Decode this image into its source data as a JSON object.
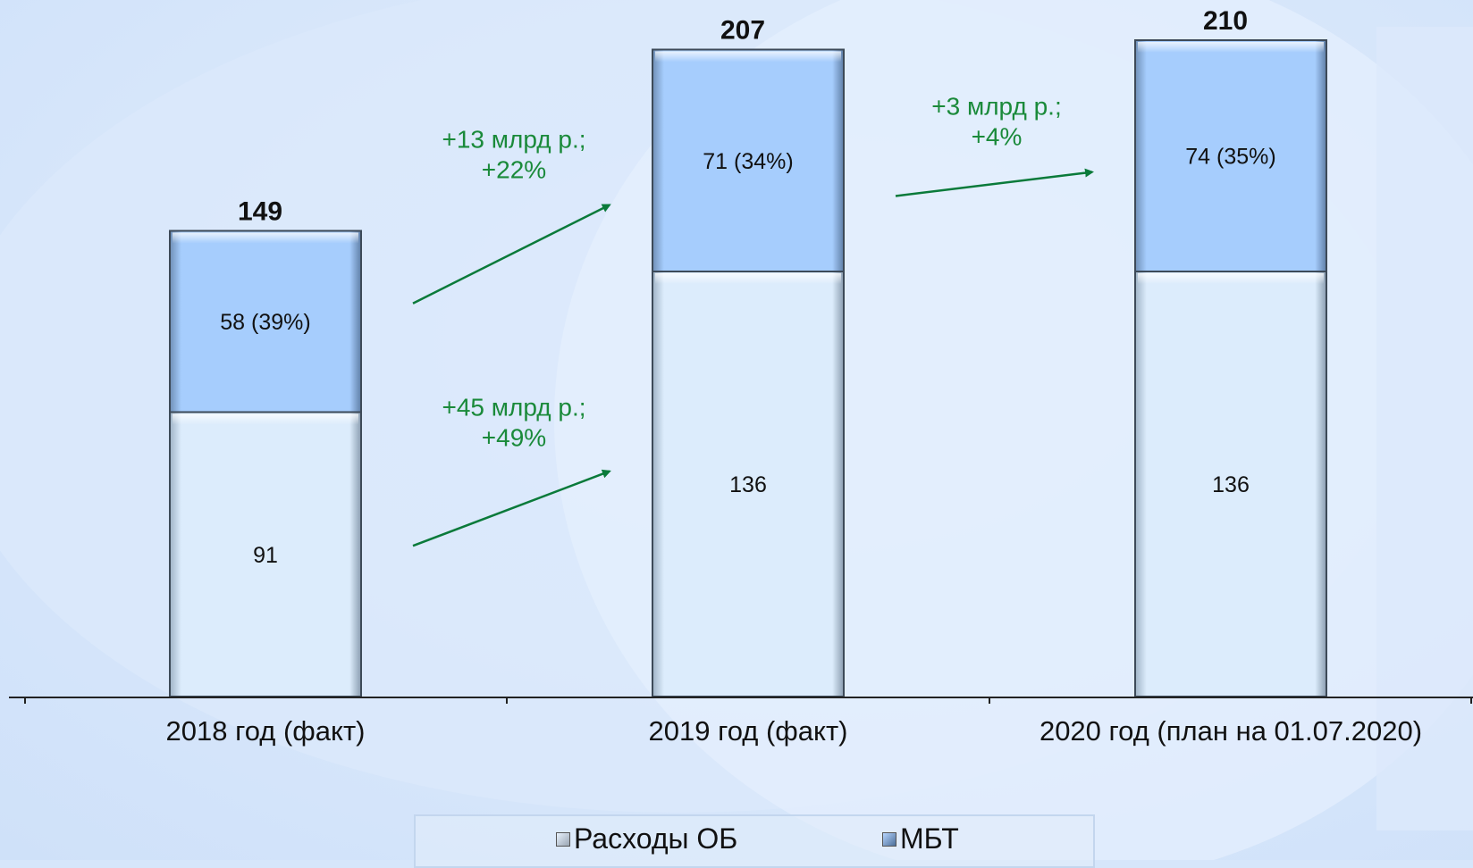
{
  "colors": {
    "background": "#d6e6fb",
    "ob_fill": "#d9ebfc",
    "mbt_fill": "#a3ccfd",
    "arrow": "#0a7a3a",
    "annotation_text": "#1a8a3a"
  },
  "chart_data": {
    "type": "bar",
    "stacked": true,
    "categories": [
      "2018 год (факт)",
      "2019 год (факт)",
      "2020 год (план на 01.07.2020)"
    ],
    "series": [
      {
        "name": "Расходы ОБ",
        "values": [
          91,
          136,
          136
        ],
        "labels": [
          "91",
          "136",
          "136"
        ]
      },
      {
        "name": "МБТ",
        "values": [
          58,
          71,
          74
        ],
        "labels": [
          "58 (39%)",
          "71 (34%)",
          "74 (35%)"
        ]
      }
    ],
    "totals": [
      149,
      207,
      210
    ],
    "total_labels": [
      "149",
      "207",
      "210"
    ],
    "ylim": [
      0,
      210
    ],
    "grid": false,
    "legend_position": "bottom",
    "annotations": [
      {
        "lines": [
          "+13 млрд р.;",
          "+22%"
        ],
        "series": "МБТ",
        "from": 0,
        "to": 1
      },
      {
        "lines": [
          "+45 млрд р.;",
          "+49%"
        ],
        "series": "Расходы ОБ",
        "from": 0,
        "to": 1
      },
      {
        "lines": [
          "+3 млрд р.;",
          "+4%"
        ],
        "series": "МБТ",
        "from": 1,
        "to": 2
      }
    ]
  },
  "legend": {
    "items": [
      {
        "label": "Расходы ОБ",
        "icon": "bar-swatch-icon"
      },
      {
        "label": "МБТ",
        "icon": "bar-swatch-icon"
      }
    ]
  }
}
